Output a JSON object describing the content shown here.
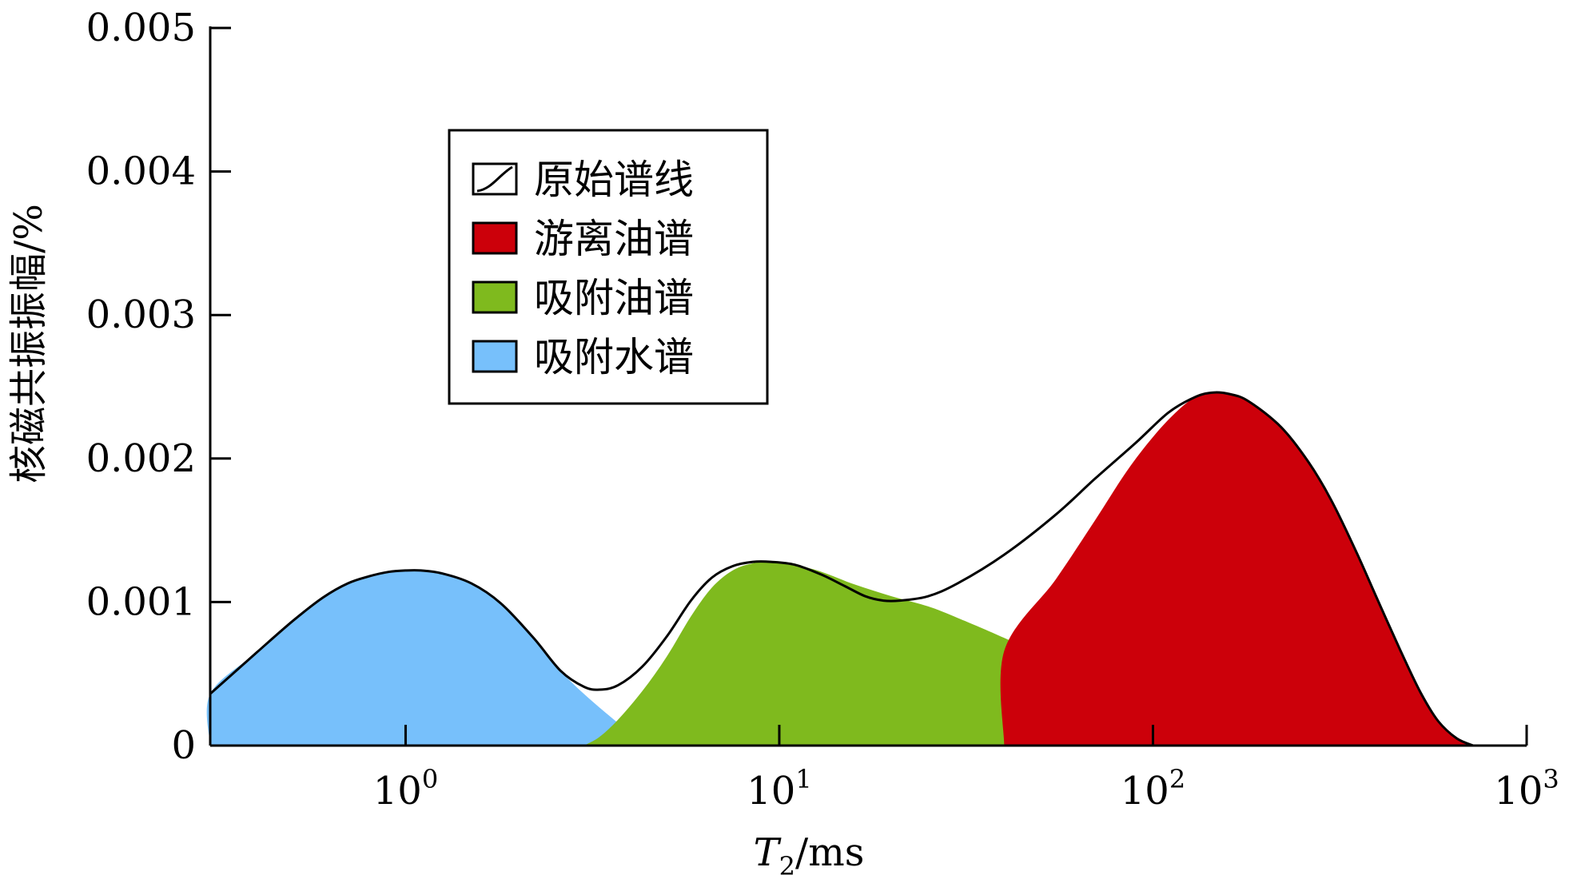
{
  "chart_data": {
    "type": "area",
    "xscale": "log",
    "xlim": [
      0.3,
      1000
    ],
    "ylim": [
      0,
      0.005
    ],
    "xlabel": "T2/ms",
    "xlabel_parts": {
      "main": "T",
      "sub": "2",
      "unit": "/ms"
    },
    "ylabel": "核磁共振振幅/%",
    "y_ticks": [
      "0",
      "0.001",
      "0.002",
      "0.003",
      "0.004",
      "0.005"
    ],
    "y_tick_values": [
      0,
      0.001,
      0.002,
      0.003,
      0.004,
      0.005
    ],
    "x_ticks": [
      {
        "value": 1,
        "base": "10",
        "exp": "0"
      },
      {
        "value": 10,
        "base": "10",
        "exp": "1"
      },
      {
        "value": 100,
        "base": "10",
        "exp": "2"
      },
      {
        "value": 1000,
        "base": "10",
        "exp": "3"
      }
    ],
    "legend": {
      "position": "upper-left"
    },
    "grid": false,
    "series": [
      {
        "name": "原始谱线",
        "style": "line",
        "color": "#000000",
        "points": [
          [
            0.3,
            0.00036
          ],
          [
            0.4,
            0.00065
          ],
          [
            0.5,
            0.00087
          ],
          [
            0.6,
            0.00103
          ],
          [
            0.7,
            0.00113
          ],
          [
            0.8,
            0.00118
          ],
          [
            0.9,
            0.00121
          ],
          [
            1.0,
            0.00122
          ],
          [
            1.1,
            0.00122
          ],
          [
            1.25,
            0.0012
          ],
          [
            1.5,
            0.00113
          ],
          [
            1.8,
            0.00099
          ],
          [
            2.2,
            0.00075
          ],
          [
            2.6,
            0.00052
          ],
          [
            3.0,
            0.00041
          ],
          [
            3.3,
            0.00039
          ],
          [
            3.7,
            0.00042
          ],
          [
            4.3,
            0.00055
          ],
          [
            5.0,
            0.00076
          ],
          [
            5.8,
            0.00101
          ],
          [
            6.6,
            0.00117
          ],
          [
            7.5,
            0.00125
          ],
          [
            8.5,
            0.00128
          ],
          [
            9.5,
            0.00128
          ],
          [
            11,
            0.00126
          ],
          [
            13,
            0.00119
          ],
          [
            15,
            0.00111
          ],
          [
            17,
            0.00104
          ],
          [
            19,
            0.00101
          ],
          [
            21,
            0.00101
          ],
          [
            25,
            0.00104
          ],
          [
            30,
            0.00113
          ],
          [
            40,
            0.00133
          ],
          [
            55,
            0.00161
          ],
          [
            70,
            0.00186
          ],
          [
            90,
            0.00211
          ],
          [
            110,
            0.00232
          ],
          [
            130,
            0.00243
          ],
          [
            145,
            0.00246
          ],
          [
            160,
            0.00245
          ],
          [
            180,
            0.0024
          ],
          [
            220,
            0.00222
          ],
          [
            260,
            0.00198
          ],
          [
            300,
            0.00171
          ],
          [
            350,
            0.00135
          ],
          [
            400,
            0.00101
          ],
          [
            460,
            0.00066
          ],
          [
            520,
            0.00037
          ],
          [
            580,
            0.00017
          ],
          [
            650,
            5e-05
          ],
          [
            720,
            0.0
          ]
        ]
      },
      {
        "name": "游离油谱",
        "style": "fill",
        "color": "#cc000a",
        "points": [
          [
            40,
            0.0
          ],
          [
            40,
            0.00066
          ],
          [
            55,
            0.00116
          ],
          [
            70,
            0.00157
          ],
          [
            85,
            0.00191
          ],
          [
            100,
            0.00215
          ],
          [
            115,
            0.00232
          ],
          [
            130,
            0.00243
          ],
          [
            145,
            0.00246
          ],
          [
            160,
            0.00245
          ],
          [
            180,
            0.0024
          ],
          [
            220,
            0.00222
          ],
          [
            260,
            0.00198
          ],
          [
            300,
            0.00171
          ],
          [
            350,
            0.00135
          ],
          [
            400,
            0.00101
          ],
          [
            460,
            0.00066
          ],
          [
            520,
            0.00037
          ],
          [
            580,
            0.00017
          ],
          [
            650,
            5e-05
          ],
          [
            720,
            0.0
          ]
        ]
      },
      {
        "name": "吸附油谱",
        "style": "fill",
        "color": "#7fba1e",
        "points": [
          [
            3.0,
            0.0
          ],
          [
            3.3,
            6e-05
          ],
          [
            3.7,
            0.00018
          ],
          [
            4.3,
            0.00038
          ],
          [
            5.0,
            0.00062
          ],
          [
            5.8,
            0.0009
          ],
          [
            6.6,
            0.0011
          ],
          [
            7.5,
            0.00122
          ],
          [
            8.5,
            0.00127
          ],
          [
            9.5,
            0.00128
          ],
          [
            11,
            0.00126
          ],
          [
            13,
            0.00121
          ],
          [
            16,
            0.00112
          ],
          [
            20,
            0.00104
          ],
          [
            25,
            0.00097
          ],
          [
            30,
            0.00089
          ],
          [
            40,
            0.00075
          ],
          [
            55,
            0.00058
          ],
          [
            70,
            0.00042
          ],
          [
            85,
            0.00025
          ],
          [
            95,
            0.0001
          ],
          [
            100,
            0.0
          ]
        ]
      },
      {
        "name": "吸附水谱",
        "style": "fill",
        "color": "#77c0fb",
        "points": [
          [
            0.3,
            0.0
          ],
          [
            0.3,
            0.00036
          ],
          [
            0.4,
            0.00065
          ],
          [
            0.5,
            0.00087
          ],
          [
            0.6,
            0.00103
          ],
          [
            0.7,
            0.00113
          ],
          [
            0.8,
            0.00118
          ],
          [
            0.9,
            0.00121
          ],
          [
            1.0,
            0.00122
          ],
          [
            1.1,
            0.00122
          ],
          [
            1.25,
            0.0012
          ],
          [
            1.5,
            0.00113
          ],
          [
            1.8,
            0.00099
          ],
          [
            2.2,
            0.00075
          ],
          [
            2.6,
            0.00052
          ],
          [
            3.0,
            0.00036
          ],
          [
            3.5,
            0.00021
          ],
          [
            4.0,
            9e-05
          ],
          [
            4.5,
            0.0
          ]
        ]
      }
    ]
  }
}
